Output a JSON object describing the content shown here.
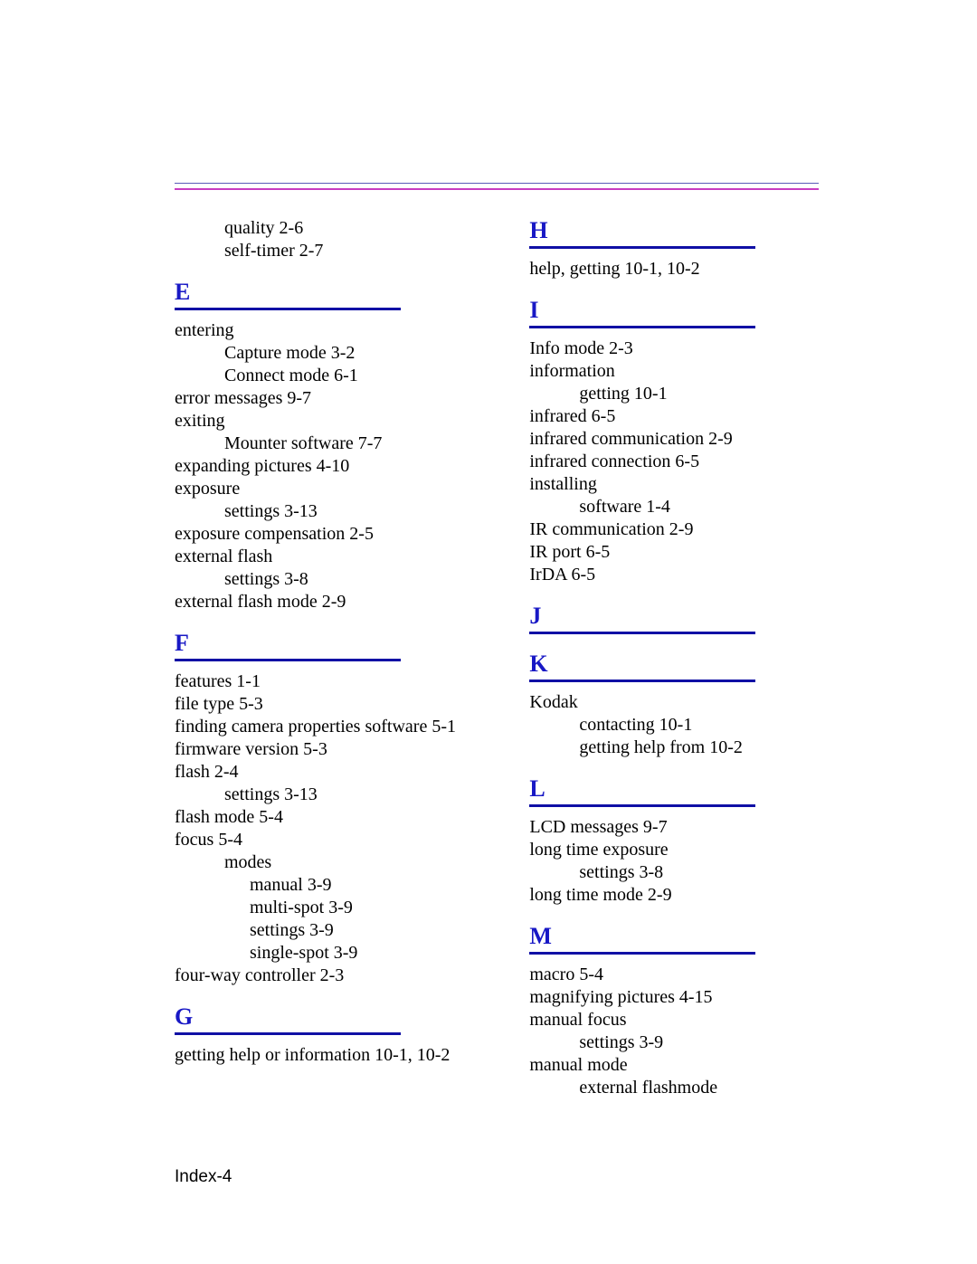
{
  "continuation": [
    {
      "text": "quality 2-6",
      "class": "i1"
    },
    {
      "text": "self-timer 2-7",
      "class": "i1"
    }
  ],
  "sections_left": [
    {
      "letter": "E",
      "entries": [
        {
          "text": "entering",
          "class": ""
        },
        {
          "text": "Capture mode 3-2",
          "class": "i1"
        },
        {
          "text": "Connect mode 6-1",
          "class": "i1"
        },
        {
          "text": "error messages 9-7",
          "class": ""
        },
        {
          "text": "exiting",
          "class": ""
        },
        {
          "text": "Mounter software 7-7",
          "class": "i1"
        },
        {
          "text": "expanding pictures 4-10",
          "class": ""
        },
        {
          "text": "exposure",
          "class": ""
        },
        {
          "text": "settings 3-13",
          "class": "i1"
        },
        {
          "text": "exposure compensation 2-5",
          "class": ""
        },
        {
          "text": "external flash",
          "class": ""
        },
        {
          "text": "settings 3-8",
          "class": "i1"
        },
        {
          "text": "external flash mode 2-9",
          "class": ""
        }
      ]
    },
    {
      "letter": "F",
      "entries": [
        {
          "text": "features 1-1",
          "class": ""
        },
        {
          "text": "file type 5-3",
          "class": ""
        },
        {
          "text": "finding camera properties software 5-1",
          "class": ""
        },
        {
          "text": "firmware version 5-3",
          "class": ""
        },
        {
          "text": "flash 2-4",
          "class": ""
        },
        {
          "text": "settings 3-13",
          "class": "i1"
        },
        {
          "text": "flash mode 5-4",
          "class": ""
        },
        {
          "text": "focus 5-4",
          "class": ""
        },
        {
          "text": "modes",
          "class": "i1"
        },
        {
          "text": "manual 3-9",
          "class": "i2"
        },
        {
          "text": "multi-spot 3-9",
          "class": "i2"
        },
        {
          "text": "settings 3-9",
          "class": "i2"
        },
        {
          "text": "single-spot 3-9",
          "class": "i2"
        },
        {
          "text": "four-way controller 2-3",
          "class": ""
        }
      ]
    },
    {
      "letter": "G",
      "entries": [
        {
          "text": "getting help or information 10-1, 10-2",
          "class": ""
        }
      ]
    }
  ],
  "sections_right": [
    {
      "letter": "H",
      "entries": [
        {
          "text": "help, getting 10-1, 10-2",
          "class": ""
        }
      ]
    },
    {
      "letter": "I",
      "entries": [
        {
          "text": "Info mode 2-3",
          "class": ""
        },
        {
          "text": "information",
          "class": ""
        },
        {
          "text": "getting 10-1",
          "class": "i1"
        },
        {
          "text": "infrared 6-5",
          "class": ""
        },
        {
          "text": "infrared communication 2-9",
          "class": ""
        },
        {
          "text": "infrared connection 6-5",
          "class": ""
        },
        {
          "text": "installing",
          "class": ""
        },
        {
          "text": "software 1-4",
          "class": "i1"
        },
        {
          "text": "IR communication 2-9",
          "class": ""
        },
        {
          "text": "IR port 6-5",
          "class": ""
        },
        {
          "text": "IrDA 6-5",
          "class": ""
        }
      ]
    },
    {
      "letter": "J",
      "entries": []
    },
    {
      "letter": "K",
      "entries": [
        {
          "text": "Kodak",
          "class": ""
        },
        {
          "text": "contacting 10-1",
          "class": "i1"
        },
        {
          "text": "getting help from 10-2",
          "class": "i1"
        }
      ]
    },
    {
      "letter": "L",
      "entries": [
        {
          "text": "LCD messages 9-7",
          "class": ""
        },
        {
          "text": "long time exposure",
          "class": ""
        },
        {
          "text": "settings 3-8",
          "class": "i1"
        },
        {
          "text": "long time mode 2-9",
          "class": ""
        }
      ]
    },
    {
      "letter": "M",
      "entries": [
        {
          "text": "macro 5-4",
          "class": ""
        },
        {
          "text": "magnifying pictures 4-15",
          "class": ""
        },
        {
          "text": "manual focus",
          "class": ""
        },
        {
          "text": "settings 3-9",
          "class": "i1"
        },
        {
          "text": "manual mode",
          "class": ""
        },
        {
          "text": "external flashmode",
          "class": "i1"
        }
      ]
    }
  ],
  "footer": "Index-4"
}
